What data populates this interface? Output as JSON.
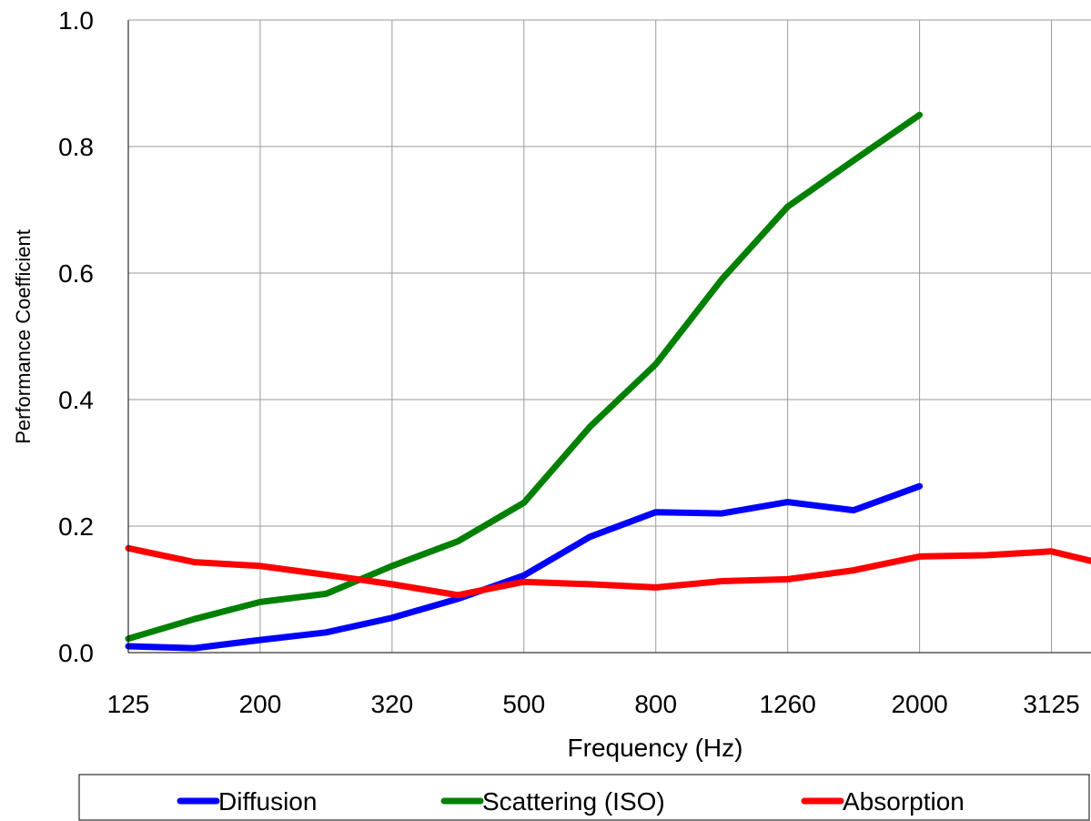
{
  "chart_data": {
    "type": "line",
    "title": "",
    "xlabel": "Frequency (Hz)",
    "ylabel": "Performance Coefficient",
    "x": [
      125,
      160,
      200,
      250,
      320,
      400,
      500,
      630,
      800,
      1000,
      1260,
      1600,
      2000,
      2500,
      3125,
      4000
    ],
    "x_tick_labels": [
      "125",
      "200",
      "320",
      "500",
      "800",
      "1260",
      "2000",
      "3125"
    ],
    "y_ticks": [
      "0.0",
      "0.2",
      "0.4",
      "0.6",
      "0.8",
      "1.0"
    ],
    "ylim": [
      0,
      1
    ],
    "x_scale": "log",
    "grid": true,
    "legend_position": "bottom",
    "series": [
      {
        "name": "Diffusion",
        "color": "#0000ff",
        "values": [
          0.01,
          0.007,
          0.02,
          0.032,
          0.055,
          0.085,
          0.122,
          0.183,
          0.222,
          0.22,
          0.238,
          0.225,
          0.263,
          null,
          null,
          null
        ]
      },
      {
        "name": "Scattering (ISO)",
        "color": "#008000",
        "values": [
          0.022,
          0.053,
          0.08,
          0.093,
          0.137,
          0.176,
          0.237,
          0.357,
          0.456,
          0.59,
          0.705,
          0.778,
          0.85,
          null,
          null,
          null
        ]
      },
      {
        "name": "Absorption",
        "color": "#ff0000",
        "values": [
          0.165,
          0.143,
          0.137,
          0.123,
          0.108,
          0.091,
          0.112,
          0.108,
          0.103,
          0.113,
          0.116,
          0.13,
          0.152,
          0.154,
          0.16,
          0.135
        ]
      }
    ]
  }
}
